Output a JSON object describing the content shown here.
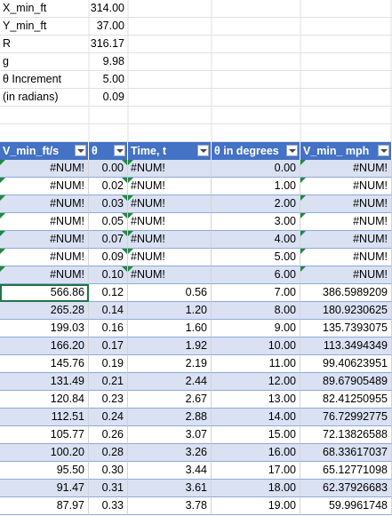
{
  "params": [
    {
      "label": "X_min_ft",
      "value": "314.00"
    },
    {
      "label": "Y_min_ft",
      "value": "37.00"
    },
    {
      "label": "R",
      "value": "316.17"
    },
    {
      "label": "g",
      "value": "9.98"
    },
    {
      "label": "θ Increment",
      "value": "5.00"
    },
    {
      "label": "(in radians)",
      "value": "0.09"
    }
  ],
  "table": {
    "headers": [
      "V_min_ft/s",
      "θ",
      "Time, t",
      "θ in degrees",
      "V_min_ mph"
    ],
    "rows": [
      [
        "#NUM!",
        "0.00",
        "#NUM!",
        "0.00",
        "#NUM!"
      ],
      [
        "#NUM!",
        "0.02",
        "#NUM!",
        "1.00",
        "#NUM!"
      ],
      [
        "#NUM!",
        "0.03",
        "#NUM!",
        "2.00",
        "#NUM!"
      ],
      [
        "#NUM!",
        "0.05",
        "#NUM!",
        "3.00",
        "#NUM!"
      ],
      [
        "#NUM!",
        "0.07",
        "#NUM!",
        "4.00",
        "#NUM!"
      ],
      [
        "#NUM!",
        "0.09",
        "#NUM!",
        "5.00",
        "#NUM!"
      ],
      [
        "#NUM!",
        "0.10",
        "#NUM!",
        "6.00",
        "#NUM!"
      ],
      [
        "566.86",
        "0.12",
        "0.56",
        "7.00",
        "386.5989209"
      ],
      [
        "265.28",
        "0.14",
        "1.20",
        "8.00",
        "180.9230625"
      ],
      [
        "199.03",
        "0.16",
        "1.60",
        "9.00",
        "135.7393075"
      ],
      [
        "166.20",
        "0.17",
        "1.92",
        "10.00",
        "113.3494349"
      ],
      [
        "145.76",
        "0.19",
        "2.19",
        "11.00",
        "99.40623951"
      ],
      [
        "131.49",
        "0.21",
        "2.44",
        "12.00",
        "89.67905489"
      ],
      [
        "120.84",
        "0.23",
        "2.67",
        "13.00",
        "82.41250955"
      ],
      [
        "112.51",
        "0.24",
        "2.88",
        "14.00",
        "76.72992775"
      ],
      [
        "105.77",
        "0.26",
        "3.07",
        "15.00",
        "72.13826588"
      ],
      [
        "100.20",
        "0.28",
        "3.26",
        "16.00",
        "68.33617037"
      ],
      [
        "95.50",
        "0.30",
        "3.44",
        "17.00",
        "65.12771098"
      ],
      [
        "91.47",
        "0.31",
        "3.61",
        "18.00",
        "62.37926683"
      ],
      [
        "87.97",
        "0.33",
        "3.78",
        "19.00",
        "59.9961748"
      ]
    ]
  },
  "colors": {
    "header_bg": "#4472c4",
    "band": "#d9e1f2",
    "error_flag": "#1e8a3c",
    "selection": "#217346"
  }
}
